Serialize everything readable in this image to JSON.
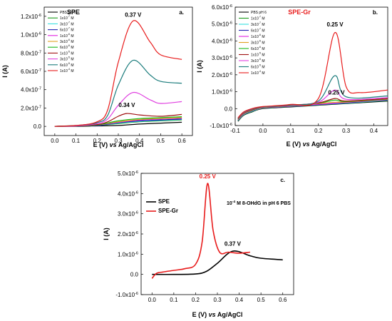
{
  "colors": {
    "PBS pH 6": "#000000",
    "1x10^-7 M": "#1a9a1a",
    "3x10^-7 M": "#36e0e0",
    "6x10^-7 M": "#2020b0",
    "1x10^-6 M": "#e020e0",
    "3x10^-6 M": "#e0a020",
    "6x10^-6 M": "#18b818",
    "1x10^-5 M": "#a01010",
    "3x10^-5 M": "#e040e0",
    "6x10^-5 M": "#1b7c7c",
    "1x10^-4 M": "#e81c1c",
    "SPE": "#000000",
    "SPE-Gr": "#e81c1c",
    "accent_red": "#e81c1c"
  },
  "chart_data": [
    {
      "panel": "a.",
      "type": "line",
      "title": "SPE",
      "xlabel": "E (V) vs Ag/AgCl",
      "ylabel": "I (A)",
      "xlim": [
        -0.05,
        0.65
      ],
      "ylim": [
        -1e-07,
        1.3e-06
      ],
      "xticks": [
        0.0,
        0.1,
        0.2,
        0.3,
        0.4,
        0.5,
        0.6
      ],
      "xtick_labels": [
        "0.0",
        "0.1",
        "0.2",
        "0.3",
        "0.4",
        "0.5",
        "0.6"
      ],
      "yticks": [
        0.0,
        2e-07,
        4e-07,
        6e-07,
        8e-07,
        1e-06,
        1.2e-06
      ],
      "ytick_labels": [
        {
          "m": "0.0",
          "e": ""
        },
        {
          "m": "2.0x10",
          "e": "-7"
        },
        {
          "m": "4.0x10",
          "e": "-7"
        },
        {
          "m": "6.0x10",
          "e": "-7"
        },
        {
          "m": "8.0x10",
          "e": "-7"
        },
        {
          "m": "1.0x10",
          "e": "-6"
        },
        {
          "m": "1.2x10",
          "e": "-6"
        }
      ],
      "legend_labels": [
        {
          "m": "PBS pH 6",
          "e": "",
          "u": ""
        },
        {
          "m": "1x10",
          "e": "-7",
          "u": "M"
        },
        {
          "m": "3x10",
          "e": "-7",
          "u": "M"
        },
        {
          "m": "6x10",
          "e": "-7",
          "u": "M"
        },
        {
          "m": "1x10",
          "e": "-6",
          "u": "M"
        },
        {
          "m": "3x10",
          "e": "-6",
          "u": "M"
        },
        {
          "m": "6x10",
          "e": "-6",
          "u": "M"
        },
        {
          "m": "1x10",
          "e": "-5",
          "u": "M"
        },
        {
          "m": "3x10",
          "e": "-5",
          "u": "M"
        },
        {
          "m": "6x10",
          "e": "-5",
          "u": "M"
        },
        {
          "m": "1x10",
          "e": "-4",
          "u": "M"
        }
      ],
      "series": [
        {
          "name": "PBS pH 6",
          "color": "#000000",
          "x": [
            0.0,
            0.1,
            0.2,
            0.3,
            0.4,
            0.5,
            0.6
          ],
          "y": [
            0.0,
            0.0,
            5e-09,
            1e-08,
            2.5e-08,
            3.5e-08,
            4.5e-08
          ]
        },
        {
          "name": "1x10^-7 M",
          "color": "#1a9a1a",
          "x": [
            0.0,
            0.1,
            0.2,
            0.3,
            0.4,
            0.5,
            0.6
          ],
          "y": [
            0.0,
            5e-09,
            1e-08,
            3e-08,
            5e-08,
            6e-08,
            7e-08
          ]
        },
        {
          "name": "3x10^-7 M",
          "color": "#36e0e0",
          "x": [
            0.0,
            0.1,
            0.2,
            0.3,
            0.4,
            0.5,
            0.6
          ],
          "y": [
            0.0,
            5e-09,
            1e-08,
            3.5e-08,
            5.5e-08,
            6.5e-08,
            7.5e-08
          ]
        },
        {
          "name": "6x10^-7 M",
          "color": "#2020b0",
          "x": [
            0.0,
            0.1,
            0.2,
            0.3,
            0.4,
            0.5,
            0.6
          ],
          "y": [
            0.0,
            5e-09,
            1e-08,
            4e-08,
            6e-08,
            7e-08,
            8e-08
          ]
        },
        {
          "name": "1x10^-6 M",
          "color": "#e020e0",
          "x": [
            0.0,
            0.1,
            0.2,
            0.3,
            0.4,
            0.5,
            0.6
          ],
          "y": [
            0.0,
            5e-09,
            1.5e-08,
            4.5e-08,
            7e-08,
            8e-08,
            9e-08
          ]
        },
        {
          "name": "3x10^-6 M",
          "color": "#e0a020",
          "x": [
            0.0,
            0.1,
            0.2,
            0.3,
            0.4,
            0.5,
            0.6
          ],
          "y": [
            0.0,
            5e-09,
            1.5e-08,
            5e-08,
            7.5e-08,
            8.5e-08,
            9.5e-08
          ]
        },
        {
          "name": "6x10^-6 M",
          "color": "#18b818",
          "x": [
            0.0,
            0.1,
            0.2,
            0.3,
            0.4,
            0.5,
            0.6
          ],
          "y": [
            0.0,
            5e-09,
            1.5e-08,
            6e-08,
            8.5e-08,
            9.5e-08,
            1.05e-07
          ]
        },
        {
          "name": "1x10^-5 M",
          "color": "#a01010",
          "x": [
            0.0,
            0.1,
            0.2,
            0.25,
            0.3,
            0.34,
            0.4,
            0.5,
            0.6
          ],
          "y": [
            0.0,
            5e-09,
            2e-08,
            5e-08,
            1.1e-07,
            1.4e-07,
            1.25e-07,
            1.1e-07,
            1.3e-07
          ]
        },
        {
          "name": "3x10^-5 M",
          "color": "#e040e0",
          "x": [
            0.0,
            0.1,
            0.2,
            0.25,
            0.3,
            0.37,
            0.45,
            0.5,
            0.6
          ],
          "y": [
            0.0,
            5e-09,
            3e-08,
            8e-08,
            2.3e-07,
            3.7e-07,
            2.9e-07,
            2.5e-07,
            2.7e-07
          ]
        },
        {
          "name": "6x10^-5 M",
          "color": "#1b7c7c",
          "x": [
            0.0,
            0.1,
            0.2,
            0.25,
            0.3,
            0.37,
            0.45,
            0.5,
            0.6
          ],
          "y": [
            0.0,
            1e-08,
            4e-08,
            1.2e-07,
            4.5e-07,
            7.2e-07,
            5.6e-07,
            4.9e-07,
            4.7e-07
          ]
        },
        {
          "name": "1x10^-4 M",
          "color": "#e81c1c",
          "x": [
            0.0,
            0.1,
            0.2,
            0.25,
            0.3,
            0.37,
            0.45,
            0.5,
            0.6
          ],
          "y": [
            0.0,
            1e-08,
            5e-08,
            1.8e-07,
            7e-07,
            1.15e-06,
            9.2e-07,
            7.8e-07,
            7.3e-07
          ]
        }
      ],
      "annotations": [
        {
          "text": "0.37 V",
          "x": 0.37,
          "y": 1.15e-06,
          "color": "#000000"
        },
        {
          "text": "0.34 V",
          "x": 0.34,
          "y": 1.5e-07,
          "color": "#000000"
        }
      ],
      "legend_placement": "top-left"
    },
    {
      "panel": "b.",
      "type": "line",
      "title": "SPE-Gr",
      "xlabel": "E (V) vs Ag/AgCl",
      "ylabel": "I (A)",
      "xlim": [
        -0.1,
        0.45
      ],
      "ylim": [
        -1e-06,
        6e-06
      ],
      "xticks": [
        -0.1,
        0.0,
        0.1,
        0.2,
        0.3,
        0.4
      ],
      "xtick_labels": [
        "-0.1",
        "0.0",
        "0.1",
        "0.2",
        "0.3",
        "0.4"
      ],
      "yticks": [
        -1e-06,
        0,
        1e-06,
        2e-06,
        3e-06,
        4e-06,
        5e-06,
        6e-06
      ],
      "ytick_labels": [
        {
          "m": "-1.0x10",
          "e": "-6"
        },
        {
          "m": "0.0",
          "e": ""
        },
        {
          "m": "1.0x10",
          "e": "-6"
        },
        {
          "m": "2.0x10",
          "e": "-6"
        },
        {
          "m": "3.0x10",
          "e": "-6"
        },
        {
          "m": "4.0x10",
          "e": "-6"
        },
        {
          "m": "5.0x10",
          "e": "-6"
        },
        {
          "m": "6.0x10",
          "e": "-6"
        }
      ],
      "legend_labels": [
        {
          "m": "PBS pH 6",
          "e": "",
          "u": ""
        },
        {
          "m": "1x10",
          "e": "-7",
          "u": "M"
        },
        {
          "m": "3x10",
          "e": "-7",
          "u": "M"
        },
        {
          "m": "6x10",
          "e": "-7",
          "u": "M"
        },
        {
          "m": "1x10",
          "e": "-6",
          "u": "M"
        },
        {
          "m": "3x10",
          "e": "-6",
          "u": "M"
        },
        {
          "m": "6x10",
          "e": "-6",
          "u": "M"
        },
        {
          "m": "1x10",
          "e": "-5",
          "u": "M"
        },
        {
          "m": "3x10",
          "e": "-5",
          "u": "M"
        },
        {
          "m": "6x10",
          "e": "-5",
          "u": "M"
        },
        {
          "m": "1x10",
          "e": "-4",
          "u": "M"
        }
      ],
      "series": [
        {
          "name": "PBS pH 6",
          "color": "#000000",
          "x": [
            -0.09,
            -0.07,
            -0.04,
            0.0,
            0.1,
            0.2,
            0.3,
            0.45
          ],
          "y": [
            -7.5e-07,
            -4e-07,
            -2e-07,
            0.0,
            1e-07,
            2e-07,
            3e-07,
            4.5e-07
          ]
        },
        {
          "name": "1x10^-7 M",
          "color": "#1a9a1a",
          "x": [
            -0.09,
            -0.07,
            -0.04,
            0.0,
            0.1,
            0.2,
            0.3,
            0.45
          ],
          "y": [
            -7.2e-07,
            -3.8e-07,
            -1.8e-07,
            2e-08,
            1.2e-07,
            2.2e-07,
            3.2e-07,
            4.8e-07
          ]
        },
        {
          "name": "3x10^-7 M",
          "color": "#36e0e0",
          "x": [
            -0.09,
            -0.07,
            -0.04,
            0.0,
            0.1,
            0.2,
            0.3,
            0.45
          ],
          "y": [
            -7e-07,
            -3.6e-07,
            -1.6e-07,
            3e-08,
            1.3e-07,
            2.3e-07,
            3.3e-07,
            5e-07
          ]
        },
        {
          "name": "6x10^-7 M",
          "color": "#2020b0",
          "x": [
            -0.09,
            -0.07,
            -0.04,
            0.0,
            0.1,
            0.2,
            0.3,
            0.45
          ],
          "y": [
            -6.8e-07,
            -3.4e-07,
            -1.4e-07,
            4e-08,
            1.4e-07,
            2.4e-07,
            3.5e-07,
            5.2e-07
          ]
        },
        {
          "name": "1x10^-6 M",
          "color": "#e020e0",
          "x": [
            -0.09,
            -0.07,
            -0.04,
            0.0,
            0.1,
            0.2,
            0.3,
            0.45
          ],
          "y": [
            -6.6e-07,
            -3.2e-07,
            -1.2e-07,
            5e-08,
            1.5e-07,
            2.6e-07,
            3.7e-07,
            5.4e-07
          ]
        },
        {
          "name": "3x10^-6 M",
          "color": "#e0a020",
          "x": [
            -0.09,
            -0.07,
            -0.04,
            0.0,
            0.1,
            0.2,
            0.26,
            0.3,
            0.45
          ],
          "y": [
            -6.4e-07,
            -3e-07,
            -1e-07,
            6e-08,
            1.7e-07,
            3e-07,
            3.8e-07,
            3.9e-07,
            5.6e-07
          ]
        },
        {
          "name": "6x10^-6 M",
          "color": "#18b818",
          "x": [
            -0.09,
            -0.07,
            -0.04,
            0.0,
            0.1,
            0.2,
            0.26,
            0.3,
            0.45
          ],
          "y": [
            -6.2e-07,
            -2.8e-07,
            -8e-08,
            7e-08,
            1.8e-07,
            3.2e-07,
            5e-07,
            4.2e-07,
            5.8e-07
          ]
        },
        {
          "name": "1x10^-5 M",
          "color": "#a01010",
          "x": [
            -0.09,
            -0.07,
            -0.04,
            0.0,
            0.1,
            0.2,
            0.26,
            0.3,
            0.45
          ],
          "y": [
            -6e-07,
            -2.6e-07,
            -6e-08,
            8e-08,
            1.9e-07,
            3.4e-07,
            6e-07,
            4.5e-07,
            6e-07
          ]
        },
        {
          "name": "3x10^-5 M",
          "color": "#e040e0",
          "x": [
            -0.09,
            -0.07,
            -0.04,
            0.0,
            0.1,
            0.2,
            0.26,
            0.3,
            0.45
          ],
          "y": [
            -5.8e-07,
            -2.4e-07,
            -4e-08,
            9e-08,
            2e-07,
            3.8e-07,
            1.1e-06,
            5.5e-07,
            6.5e-07
          ]
        },
        {
          "name": "6x10^-5 M",
          "color": "#1b7c7c",
          "x": [
            -0.09,
            -0.07,
            -0.04,
            0.0,
            0.1,
            0.2,
            0.26,
            0.3,
            0.45
          ],
          "y": [
            -5.6e-07,
            -2.2e-07,
            -2e-08,
            1e-07,
            2.2e-07,
            4.5e-07,
            1.95e-06,
            7e-07,
            7.5e-07
          ]
        },
        {
          "name": "1x10^-4 M",
          "color": "#e81c1c",
          "x": [
            -0.09,
            -0.07,
            -0.04,
            0.0,
            0.1,
            0.2,
            0.26,
            0.3,
            0.35,
            0.45
          ],
          "y": [
            -5.4e-07,
            -2e-07,
            0.0,
            1.2e-07,
            2.5e-07,
            6e-07,
            4.5e-06,
            1.3e-06,
            9.5e-07,
            1.1e-06
          ]
        }
      ],
      "annotations": [
        {
          "text": "0.25 V",
          "x": 0.26,
          "y": 4.6e-06,
          "color": "#000000"
        },
        {
          "text": "0.25 V",
          "x": 0.26,
          "y": 6.2e-07,
          "color": "#000000"
        }
      ],
      "legend_placement": "top-left"
    },
    {
      "panel": "c.",
      "type": "line",
      "title": "",
      "xlabel": "E (V) vs Ag/AgCl",
      "ylabel": "I (A)",
      "xlim": [
        -0.05,
        0.65
      ],
      "ylim": [
        -1e-06,
        5e-06
      ],
      "xticks": [
        0.0,
        0.1,
        0.2,
        0.3,
        0.4,
        0.5,
        0.6
      ],
      "xtick_labels": [
        "0.0",
        "0.1",
        "0.2",
        "0.3",
        "0.4",
        "0.5",
        "0.6"
      ],
      "yticks": [
        -1e-06,
        0,
        1e-06,
        2e-06,
        3e-06,
        4e-06,
        5e-06
      ],
      "ytick_labels": [
        {
          "m": "-1.0x10",
          "e": "-6"
        },
        {
          "m": "0.0",
          "e": ""
        },
        {
          "m": "1.0x10",
          "e": "-6"
        },
        {
          "m": "2.0x10",
          "e": "-6"
        },
        {
          "m": "3.0x10",
          "e": "-6"
        },
        {
          "m": "4.0x10",
          "e": "-6"
        },
        {
          "m": "5.0x10",
          "e": "-6"
        }
      ],
      "legend_labels": [
        {
          "m": "SPE",
          "e": "",
          "u": ""
        },
        {
          "m": "SPE-Gr",
          "e": "",
          "u": ""
        }
      ],
      "series": [
        {
          "name": "SPE",
          "color": "#000000",
          "x": [
            0.0,
            0.1,
            0.2,
            0.25,
            0.3,
            0.37,
            0.45,
            0.5,
            0.6
          ],
          "y": [
            0.0,
            0.0,
            2e-08,
            1.5e-07,
            5.5e-07,
            1.15e-06,
            9.2e-07,
            8e-07,
            7.2e-07
          ]
        },
        {
          "name": "SPE-Gr",
          "color": "#e81c1c",
          "x": [
            0.0,
            0.02,
            0.05,
            0.1,
            0.15,
            0.2,
            0.23,
            0.255,
            0.28,
            0.31,
            0.35,
            0.4,
            0.45
          ],
          "y": [
            -2e-07,
            5e-08,
            1.2e-07,
            2e-07,
            2.8e-07,
            5e-07,
            1.6e-06,
            4.5e-06,
            2.2e-06,
            1.1e-06,
            1.1e-06,
            1.05e-06,
            1.1e-06
          ]
        }
      ],
      "annotations": [
        {
          "text": "0.25 V",
          "x": 0.255,
          "y": 4.55e-06,
          "color": "#e81c1c"
        },
        {
          "text": "0.37 V",
          "x": 0.37,
          "y": 1.2e-06,
          "color": "#000000"
        }
      ],
      "note": {
        "m1": "10",
        "e": "-4",
        "m2": " M 8-OHdG in pH 6 PBS"
      },
      "legend_placement": "center-left"
    }
  ]
}
